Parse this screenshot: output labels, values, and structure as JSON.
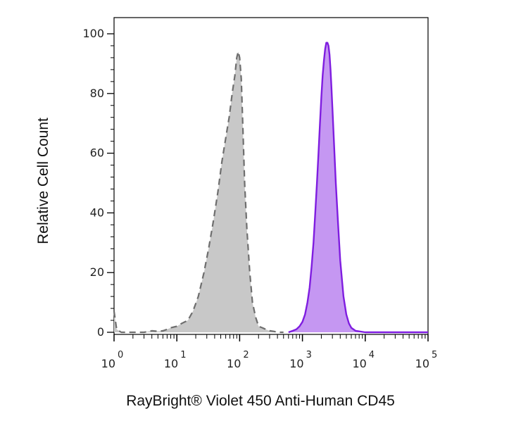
{
  "chart_data": {
    "type": "area",
    "xlabel": "RayBright® Violet 450 Anti-Human CD45",
    "ylabel": "Relative Cell Count",
    "xscale": "log",
    "xlim": [
      1,
      100000
    ],
    "ylim": [
      0,
      100
    ],
    "x_ticks": [
      {
        "base": "10",
        "exp": "0",
        "value": 1
      },
      {
        "base": "10",
        "exp": "1",
        "value": 10
      },
      {
        "base": "10",
        "exp": "2",
        "value": 100
      },
      {
        "base": "10",
        "exp": "3",
        "value": 1000
      },
      {
        "base": "10",
        "exp": "4",
        "value": 10000
      },
      {
        "base": "10",
        "exp": "5",
        "value": 100000
      }
    ],
    "y_ticks": [
      0,
      20,
      40,
      60,
      80,
      100
    ],
    "grid": false,
    "series": [
      {
        "style": "control",
        "fill": "#c8c8c8",
        "stroke": "#6e6e6e",
        "dashed": true,
        "x": [
          1,
          1.1,
          1.3,
          2,
          3,
          4,
          5,
          6,
          7,
          8,
          10,
          12,
          15,
          18,
          22,
          27,
          32,
          38,
          45,
          52,
          60,
          68,
          76,
          84,
          90,
          95,
          100,
          106,
          112,
          120,
          130,
          145,
          160,
          180,
          200,
          230,
          260,
          300,
          350,
          400,
          500
        ],
        "y": [
          7,
          1,
          0,
          0,
          0,
          0.5,
          0.3,
          0.5,
          1,
          1.5,
          2,
          3,
          4,
          7,
          12,
          20,
          28,
          37,
          47,
          57,
          65,
          72,
          80,
          86,
          92,
          94,
          92,
          85,
          70,
          50,
          35,
          20,
          10,
          5,
          2,
          1.5,
          1,
          0.5,
          0.3,
          0,
          0
        ]
      },
      {
        "style": "stained",
        "fill": "#c597f2",
        "stroke": "#7f1de0",
        "dashed": false,
        "x": [
          600,
          700,
          800,
          900,
          1000,
          1100,
          1200,
          1300,
          1400,
          1500,
          1600,
          1700,
          1800,
          1900,
          2000,
          2100,
          2200,
          2300,
          2400,
          2500,
          2600,
          2700,
          2800,
          2900,
          3000,
          3200,
          3400,
          3700,
          4000,
          4500,
          5000,
          5500,
          6000,
          7000,
          8000,
          10000,
          20000,
          50000,
          100000
        ],
        "y": [
          0,
          0.5,
          1,
          2,
          3.5,
          6,
          10,
          15,
          22,
          30,
          40,
          50,
          60,
          70,
          79,
          86,
          91,
          95,
          97,
          97,
          96,
          93,
          88,
          82,
          75,
          62,
          50,
          36,
          24,
          12,
          6,
          3,
          1.5,
          0.5,
          0.3,
          0,
          0,
          0,
          0
        ]
      }
    ]
  }
}
